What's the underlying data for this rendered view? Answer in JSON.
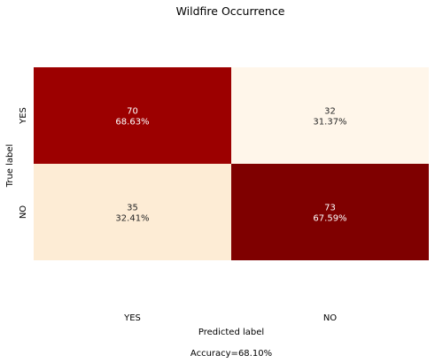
{
  "chart_data": {
    "type": "heatmap",
    "title": "Wildfire Occurrence",
    "xlabel": "Predicted label",
    "ylabel": "True label",
    "x_categories": [
      "YES",
      "NO"
    ],
    "y_categories": [
      "YES",
      "NO"
    ],
    "values": [
      [
        70,
        32
      ],
      [
        35,
        73
      ]
    ],
    "percent_labels": [
      [
        "68.63%",
        "31.37%"
      ],
      [
        "32.41%",
        "67.59%"
      ]
    ],
    "cell_colors": [
      [
        "#9c0000",
        "#fff6ea"
      ],
      [
        "#fdecd5",
        "#7f0000"
      ]
    ],
    "cell_text_colors": [
      [
        "#ffffff",
        "#262626"
      ],
      [
        "#262626",
        "#ffffff"
      ]
    ],
    "footer": "Accuracy=68.10%",
    "colormap": "OrRd",
    "colorbar": false
  }
}
